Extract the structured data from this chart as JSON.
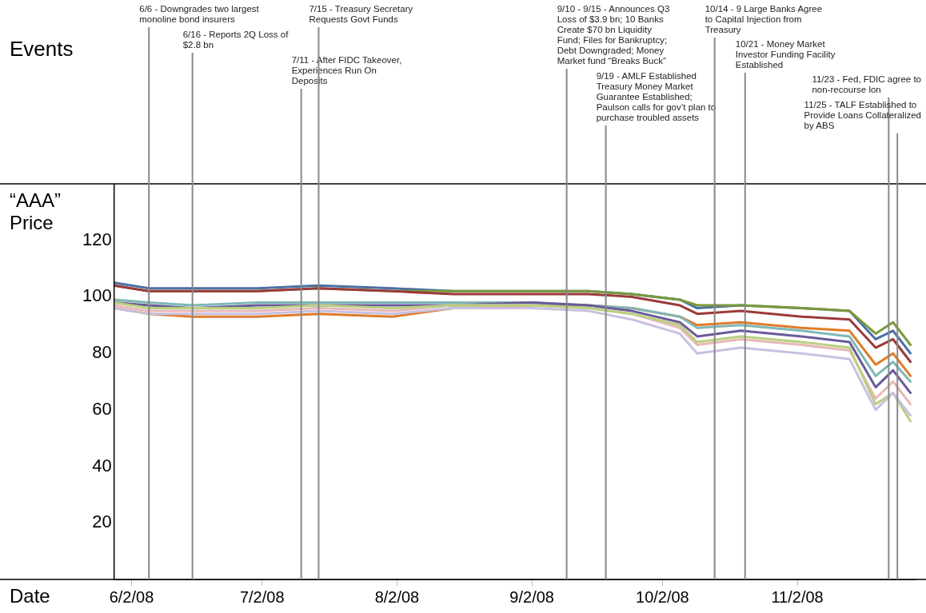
{
  "chart_data": {
    "type": "line",
    "xlabel": "Date",
    "ylabel": "“AAA” Price",
    "annotations": [
      "Events"
    ],
    "x": [
      "2008-05-29",
      "2008-06-06",
      "2008-06-16",
      "2008-07-01",
      "2008-07-15",
      "2008-08-01",
      "2008-08-15",
      "2008-09-02",
      "2008-09-15",
      "2008-09-25",
      "2008-10-06",
      "2008-10-10",
      "2008-10-20",
      "2008-11-03",
      "2008-11-14",
      "2008-11-20",
      "2008-11-24",
      "2008-11-28"
    ],
    "series": [
      {
        "color": "#c8c0e0",
        "values": [
          96,
          94,
          94,
          94,
          95,
          94,
          96,
          96,
          95,
          92,
          87,
          80,
          82,
          80,
          78,
          60,
          66,
          58
        ]
      },
      {
        "color": "#b8d080",
        "values": [
          98,
          96,
          96,
          96,
          97,
          96,
          97,
          97,
          96,
          94,
          90,
          84,
          86,
          84,
          82,
          62,
          66,
          56
        ]
      },
      {
        "color": "#e8b8b8",
        "values": [
          97,
          95,
          95,
          95,
          96,
          95,
          97,
          97,
          96,
          94,
          89,
          83,
          85,
          83,
          81,
          64,
          70,
          62
        ]
      },
      {
        "color": "#6a5a9a",
        "values": [
          98,
          97,
          96,
          97,
          97,
          97,
          97,
          98,
          97,
          95,
          91,
          86,
          88,
          86,
          84,
          68,
          74,
          66
        ]
      },
      {
        "color": "#7fb8b8",
        "values": [
          99,
          98,
          97,
          98,
          98,
          98,
          98,
          98,
          97,
          96,
          93,
          89,
          90,
          88,
          86,
          72,
          77,
          70
        ]
      },
      {
        "color": "#e07b2a",
        "values": [
          96,
          94,
          93,
          93,
          94,
          93,
          96,
          97,
          97,
          96,
          93,
          90,
          91,
          89,
          88,
          76,
          80,
          72
        ]
      },
      {
        "color": "#9b3a3a",
        "values": [
          104,
          102,
          102,
          102,
          103,
          102,
          101,
          101,
          101,
          100,
          97,
          94,
          95,
          93,
          92,
          82,
          85,
          77
        ]
      },
      {
        "color": "#7a9a3a",
        "values": [
          104,
          102,
          102,
          102,
          103,
          102,
          102,
          102,
          102,
          101,
          99,
          97,
          97,
          96,
          95,
          87,
          91,
          83
        ]
      },
      {
        "color": "#4a6fa5",
        "values": [
          105,
          103,
          103,
          103,
          104,
          103,
          102,
          102,
          102,
          101,
          99,
          96,
          97,
          96,
          95,
          85,
          88,
          80
        ]
      }
    ],
    "xlim": [
      "2008-05-29",
      "2008-11-29"
    ],
    "xticks": [
      {
        "value": "2008-06-02",
        "label": "6/2/08"
      },
      {
        "value": "2008-07-02",
        "label": "7/2/08"
      },
      {
        "value": "2008-08-02",
        "label": "8/2/08"
      },
      {
        "value": "2008-09-02",
        "label": "9/2/08"
      },
      {
        "value": "2008-10-02",
        "label": "10/2/08"
      },
      {
        "value": "2008-11-02",
        "label": "11/2/08"
      }
    ],
    "ylim": [
      0,
      140
    ],
    "yticks": [
      20,
      40,
      60,
      80,
      100,
      120
    ],
    "grid": false,
    "legend": false,
    "marker": "none",
    "line_style": "solid",
    "ref_lines": [
      {
        "axis": "x",
        "value": "2008-06-06",
        "label": "6/6 - Downgrades two largest monoline bond insurers",
        "color": "#888888"
      },
      {
        "axis": "x",
        "value": "2008-06-16",
        "label": "6/16 - Reports 2Q Loss of $2.8 bn",
        "color": "#888888"
      },
      {
        "axis": "x",
        "value": "2008-07-11",
        "label": "7/11 - After FIDC Takeover, Experiences Run On Deposits",
        "color": "#888888"
      },
      {
        "axis": "x",
        "value": "2008-07-15",
        "label": "7/15 - Treasury Secretary Requests Govt Funds",
        "color": "#888888"
      },
      {
        "axis": "x",
        "value": "2008-09-10",
        "label": "9/10 - 9/15 - Announces Q3 Loss of $3.9 bn; 10 Banks Create $70 bn Liquidity Fund; Files for Bankruptcy; Debt Downgraded; Money Market fund “Breaks Buck”",
        "color": "#888888"
      },
      {
        "axis": "x",
        "value": "2008-09-19",
        "label": "9/19 - AMLF Established Treasury Money Market Guarantee Established; Paulson calls for gov’t plan to purchase troubled assets",
        "color": "#888888"
      },
      {
        "axis": "x",
        "value": "2008-10-14",
        "label": "10/14 - 9 Large Banks Agree to Capital Injection from Treasury",
        "color": "#888888"
      },
      {
        "axis": "x",
        "value": "2008-10-21",
        "label": "10/21 - Money Market Investor Funding Facility Established",
        "color": "#888888"
      },
      {
        "axis": "x",
        "value": "2008-11-23",
        "label": "11/23 - Fed, FDIC agree to non-recourse lon",
        "color": "#888888"
      },
      {
        "axis": "x",
        "value": "2008-11-25",
        "label": "11/25 - TALF Established to Provide Loans Collateralized by ABS",
        "color": "#888888"
      }
    ]
  }
}
